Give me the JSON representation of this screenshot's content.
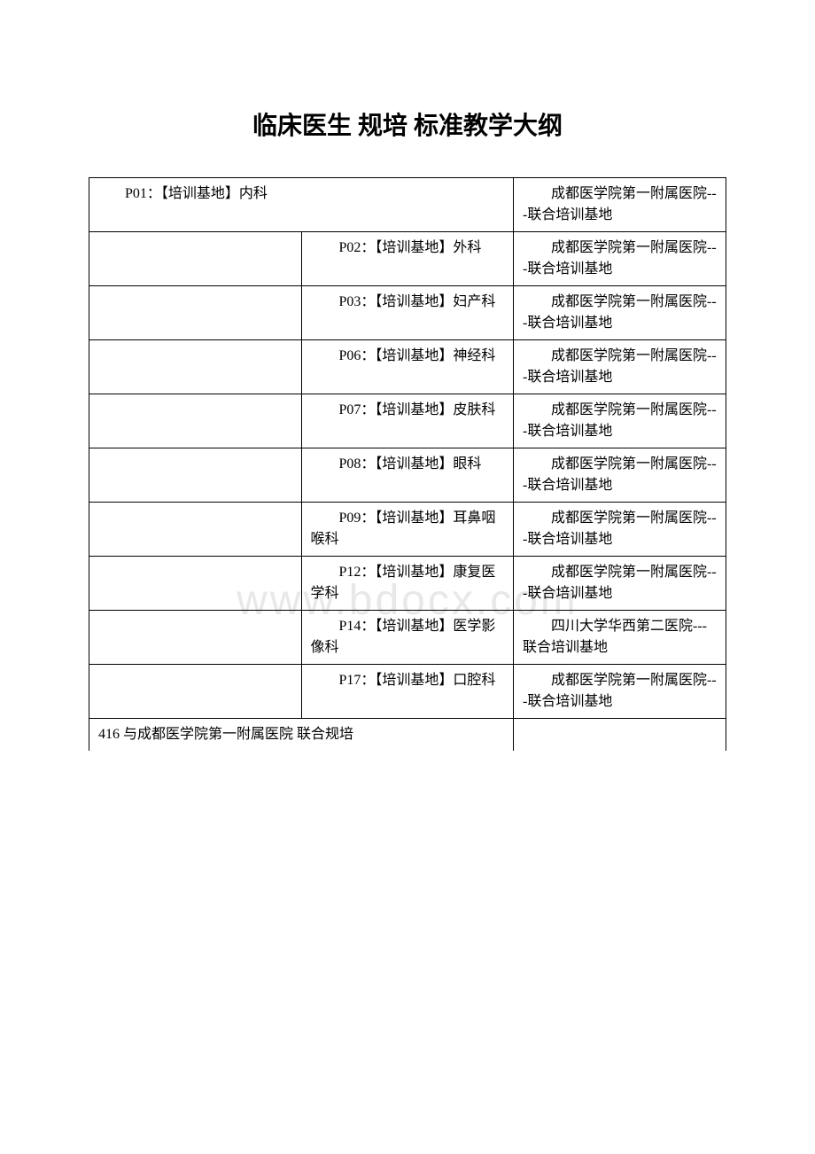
{
  "title": "临床医生 规培 标准教学大纲",
  "watermark": "www.bdocx.com",
  "table": {
    "border_color": "#000000",
    "text_color": "#000000",
    "background_color": "#ffffff",
    "font_size": 16,
    "title_font_size": 28,
    "rows": [
      {
        "col1_span2": "P01：【培训基地】内科",
        "col3": "成都医学院第一附属医院---联合培训基地"
      },
      {
        "col1": "",
        "col2": "P02：【培训基地】外科",
        "col3": "成都医学院第一附属医院---联合培训基地"
      },
      {
        "col1": "",
        "col2": "P03：【培训基地】妇产科",
        "col3": "成都医学院第一附属医院---联合培训基地"
      },
      {
        "col1": "",
        "col2": "P06：【培训基地】神经科",
        "col3": "成都医学院第一附属医院---联合培训基地"
      },
      {
        "col1": "",
        "col2": "P07：【培训基地】皮肤科",
        "col3": "成都医学院第一附属医院---联合培训基地"
      },
      {
        "col1": "",
        "col2": "P08：【培训基地】眼科",
        "col3": "成都医学院第一附属医院---联合培训基地"
      },
      {
        "col1": "",
        "col2": "P09：【培训基地】耳鼻咽喉科",
        "col3": "成都医学院第一附属医院---联合培训基地"
      },
      {
        "col1": "",
        "col2": "P12：【培训基地】康复医学科",
        "col3": "成都医学院第一附属医院---联合培训基地"
      },
      {
        "col1": "",
        "col2": "P14：【培训基地】医学影像科",
        "col3": "四川大学华西第二医院---联合培训基地"
      },
      {
        "col1": "",
        "col2": "P17：【培训基地】口腔科",
        "col3": "成都医学院第一附属医院---联合培训基地"
      }
    ],
    "footer": {
      "text": "416 与成都医学院第一附属医院 联合规培"
    }
  }
}
